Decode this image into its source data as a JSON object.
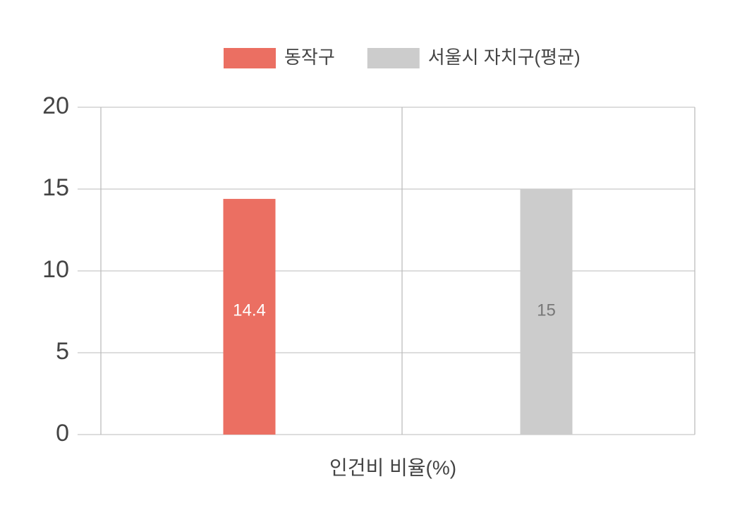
{
  "chart_data": {
    "type": "bar",
    "categories": [
      "인건비 비율(%)"
    ],
    "series": [
      {
        "name": "동작구",
        "color": "#eb6f62",
        "label_color": "#ffffff",
        "values": [
          14.4
        ]
      },
      {
        "name": "서울시 자치구(평균)",
        "color": "#cccccc",
        "label_color": "#777777",
        "values": [
          15
        ]
      }
    ],
    "ylim": [
      0,
      20
    ],
    "yticks": [
      0,
      5,
      10,
      15,
      20
    ],
    "grid": true,
    "legend": "top"
  }
}
